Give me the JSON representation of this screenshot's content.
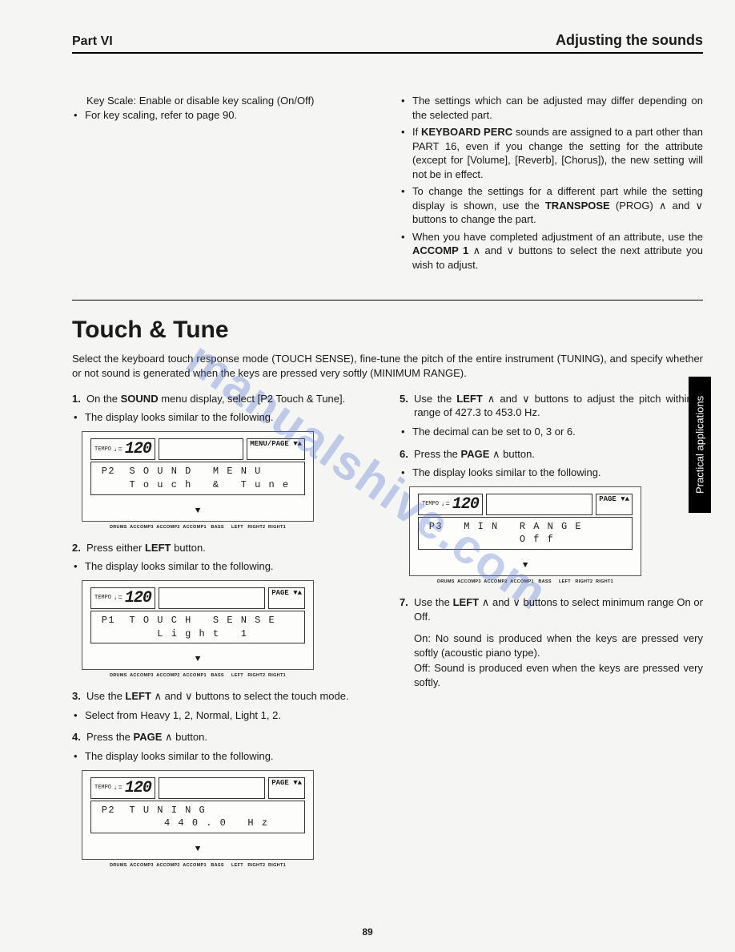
{
  "header": {
    "part": "Part VI",
    "right": "Adjusting the sounds"
  },
  "top_left": {
    "key_scale": "Key Scale: Enable or disable key scaling (On/Off)",
    "bullets": [
      "For key scaling, refer to page 90."
    ]
  },
  "top_right": {
    "bullets": [
      "The settings which can be adjusted may differ depending on the selected part.",
      "If <b>KEYBOARD PERC</b> sounds are assigned to a part other than PART 16, even if you change the setting for the attribute (except for [Volume], [Reverb], [Chorus]), the new setting will not be in effect.",
      "To change the settings for a different part while the setting display is shown, use the <b>TRANSPOSE</b> (PROG) ∧ and ∨ buttons to change the part.",
      "When you have completed adjustment of an attribute, use the <b>ACCOMP 1</b> ∧ and ∨ buttons to select the next attribute you wish to adjust."
    ]
  },
  "section": {
    "title": "Touch & Tune",
    "intro": "Select the keyboard touch response mode (TOUCH SENSE), fine-tune the pitch of the entire instrument (TUNING), and specify whether or not sound is generated when the keys are pressed very softly (MINIMUM RANGE)."
  },
  "left_steps": {
    "s1": {
      "num": "1.",
      "text": "On the <b>SOUND</b> menu display, select [P2 Touch & Tune]."
    },
    "s1_sub": [
      "The display looks similar to the following."
    ],
    "s2": {
      "num": "2.",
      "text": "Press either <b>LEFT</b> button."
    },
    "s2_sub": [
      "The display looks similar to the following."
    ],
    "s3": {
      "num": "3.",
      "text": "Use the <b>LEFT</b> ∧ and ∨ buttons to select the touch mode."
    },
    "s3_sub": [
      "Select from Heavy 1, 2, Normal, Light 1, 2."
    ],
    "s4": {
      "num": "4.",
      "text": "Press the <b>PAGE</b> ∧ button."
    },
    "s4_sub": [
      "The display looks similar to the following."
    ]
  },
  "right_steps": {
    "s5": {
      "num": "5.",
      "text": "Use the <b>LEFT</b> ∧ and ∨ buttons to adjust the pitch within a range of 427.3 to 453.0 Hz."
    },
    "s5_sub": [
      "The decimal can be set to 0, 3 or 6."
    ],
    "s6": {
      "num": "6.",
      "text": "Press the <b>PAGE</b> ∧ button."
    },
    "s6_sub": [
      "The display looks similar to the following."
    ],
    "s7": {
      "num": "7.",
      "text": "Use the <b>LEFT</b> ∧ and ∨ buttons to select minimum range On or Off."
    },
    "on_label": "On: No sound is produced when the keys are pressed very softly (acoustic piano type).",
    "off_label": "Off: Sound is produced even when the keys are pressed very softly."
  },
  "lcd": {
    "tempo_label": "TEMPO",
    "tempo": "120",
    "menu_page": "MENU/PAGE ▼▲",
    "page": "PAGE ▼▲",
    "bottom": "DRUMS  ACCOMP3  ACCOMP2  ACCOMP1   BASS     LEFT   RIGHT2  RIGHT1",
    "disp1_l1": " P2  S O U N D   M E N U",
    "disp1_l2": "     T o u c h   &   T u n e",
    "disp2_l1": " P1  T O U C H   S E N S E",
    "disp2_l2": "         L i g h t   1",
    "disp3_l1": " P2  T U N I N G",
    "disp3_l2": "          4 4 0 . 0   H z",
    "disp4_l1": " P3   M I N   R A N G E",
    "disp4_l2": "              O f f"
  },
  "side_tab": "Practical applications",
  "watermark": "manualshive.com",
  "page_number": "89"
}
